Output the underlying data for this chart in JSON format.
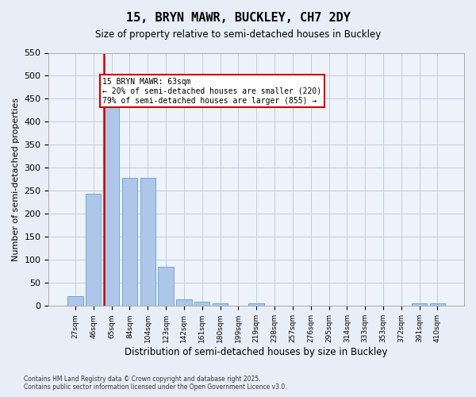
{
  "title": "15, BRYN MAWR, BUCKLEY, CH7 2DY",
  "subtitle": "Size of property relative to semi-detached houses in Buckley",
  "xlabel": "Distribution of semi-detached houses by size in Buckley",
  "ylabel": "Number of semi-detached properties",
  "categories": [
    "27sqm",
    "46sqm",
    "65sqm",
    "84sqm",
    "104sqm",
    "123sqm",
    "142sqm",
    "161sqm",
    "180sqm",
    "199sqm",
    "219sqm",
    "238sqm",
    "257sqm",
    "276sqm",
    "295sqm",
    "314sqm",
    "333sqm",
    "353sqm",
    "372sqm",
    "391sqm",
    "410sqm"
  ],
  "values": [
    22,
    243,
    435,
    278,
    278,
    85,
    14,
    10,
    5,
    0,
    5,
    0,
    0,
    0,
    0,
    0,
    0,
    0,
    0,
    5,
    5
  ],
  "bar_color": "#aec6e8",
  "bar_edge_color": "#6aaad4",
  "highlight_index": 2,
  "highlight_color": "#cc0000",
  "ylim": [
    0,
    550
  ],
  "yticks": [
    0,
    50,
    100,
    150,
    200,
    250,
    300,
    350,
    400,
    450,
    500,
    550
  ],
  "annotation_title": "15 BRYN MAWR: 63sqm",
  "annotation_line1": "← 20% of semi-detached houses are smaller (220)",
  "annotation_line2": "79% of semi-detached houses are larger (855) →",
  "annotation_box_color": "#cc0000",
  "footer_line1": "Contains HM Land Registry data © Crown copyright and database right 2025.",
  "footer_line2": "Contains public sector information licensed under the Open Government Licence v3.0.",
  "bg_color": "#e8eef8",
  "plot_bg_color": "#eef2fa",
  "grid_color": "#c0cce0"
}
